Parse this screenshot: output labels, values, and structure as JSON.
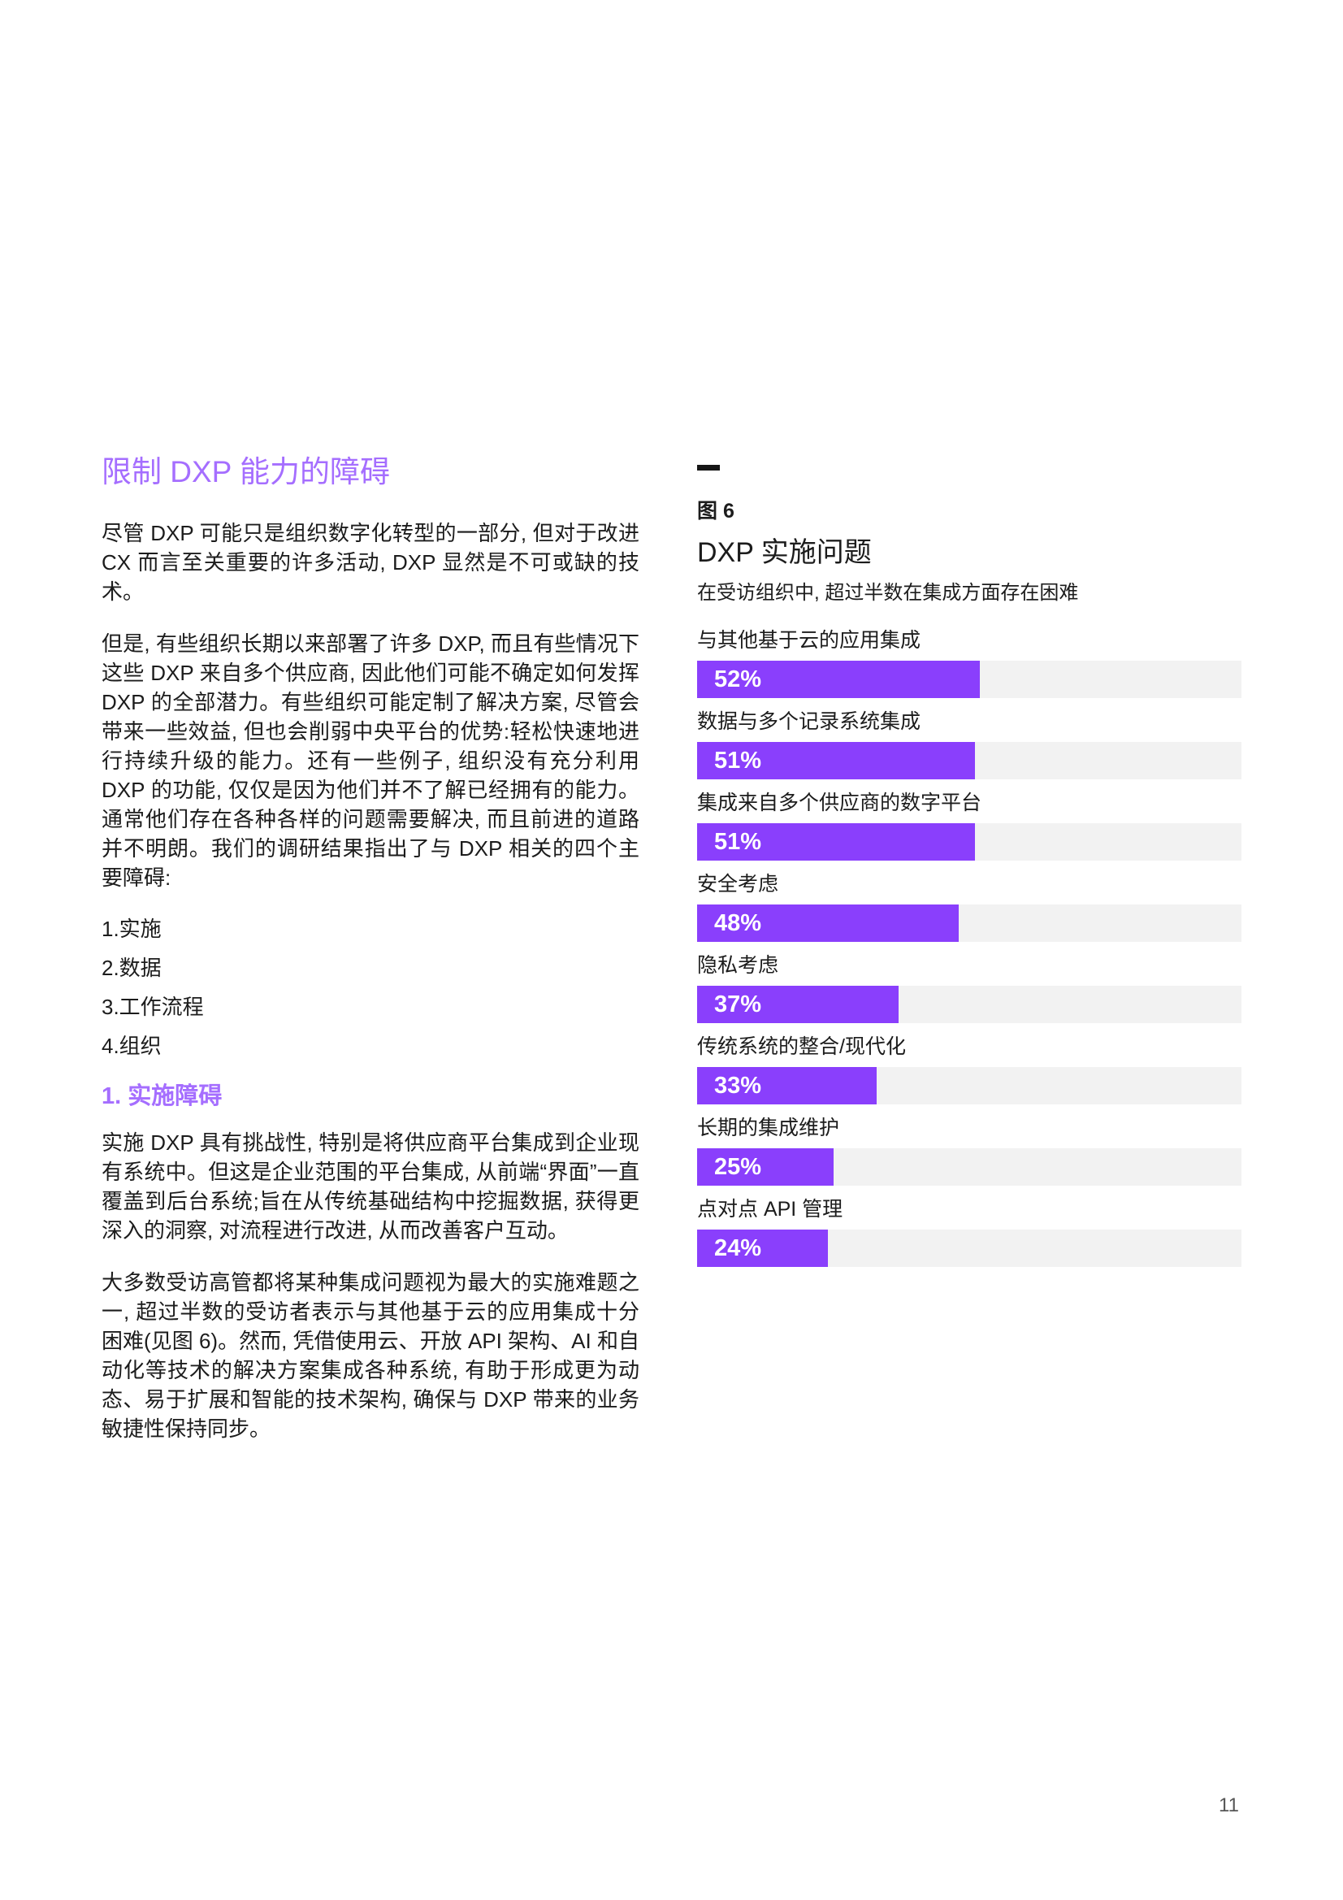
{
  "page": {
    "number": "11"
  },
  "colors": {
    "accent_purple": "#8a3ffc",
    "heading_purple": "#a56eff",
    "bar_track": "#f2f2f2",
    "text_dark": "#1c1c1c",
    "page_number_gray": "#565656"
  },
  "left_column": {
    "heading": "限制 DXP 能力的障碍",
    "paragraph_1": "尽管 DXP 可能只是组织数字化转型的一部分, 但对于改进 CX 而言至关重要的许多活动, DXP 显然是不可或缺的技术。",
    "paragraph_2": "但是, 有些组织长期以来部署了许多 DXP, 而且有些情况下这些 DXP 来自多个供应商, 因此他们可能不确定如何发挥 DXP 的全部潜力。有些组织可能定制了解决方案, 尽管会带来一些效益, 但也会削弱中央平台的优势:轻松快速地进行持续升级的能力。还有一些例子, 组织没有充分利用 DXP 的功能, 仅仅是因为他们并不了解已经拥有的能力。通常他们存在各种各样的问题需要解决, 而且前进的道路并不明朗。我们的调研结果指出了与 DXP 相关的四个主要障碍:",
    "list_items": [
      "1.实施",
      "2.数据",
      "3.工作流程",
      "4.组织"
    ],
    "subheading": "1. 实施障碍",
    "paragraph_3": "实施 DXP 具有挑战性, 特别是将供应商平台集成到企业现有系统中。但这是企业范围的平台集成, 从前端“界面”一直覆盖到后台系统;旨在从传统基础结构中挖掘数据, 获得更深入的洞察, 对流程进行改进, 从而改善客户互动。",
    "paragraph_4": "大多数受访高管都将某种集成问题视为最大的实施难题之一, 超过半数的受访者表示与其他基于云的应用集成十分困难(见图 6)。然而, 凭借使用云、开放 API 架构、AI 和自动化等技术的解决方案集成各种系统, 有助于形成更为动态、易于扩展和智能的技术架构, 确保与 DXP 带来的业务敏捷性保持同步。"
  },
  "figure": {
    "eyebrow": "图 6",
    "title": "DXP 实施问题",
    "subtitle": "在受访组织中, 超过半数在集成方面存在困难"
  },
  "chart_data": {
    "type": "bar",
    "orientation": "horizontal",
    "title": "DXP 实施问题",
    "subtitle": "在受访组织中, 超过半数在集成方面存在困难",
    "categories": [
      "与其他基于云的应用集成",
      "数据与多个记录系统集成",
      "集成来自多个供应商的数字平台",
      "安全考虑",
      "隐私考虑",
      "传统系统的整合/现代化",
      "长期的集成维护",
      "点对点 API 管理"
    ],
    "values": [
      52,
      51,
      51,
      48,
      37,
      33,
      25,
      24
    ],
    "unit": "%",
    "xlim": [
      0,
      100
    ],
    "grid": false,
    "legend": false,
    "bar_color": "#8a3ffc",
    "track_color": "#f2f2f2",
    "value_labels_inside_bars": true
  }
}
